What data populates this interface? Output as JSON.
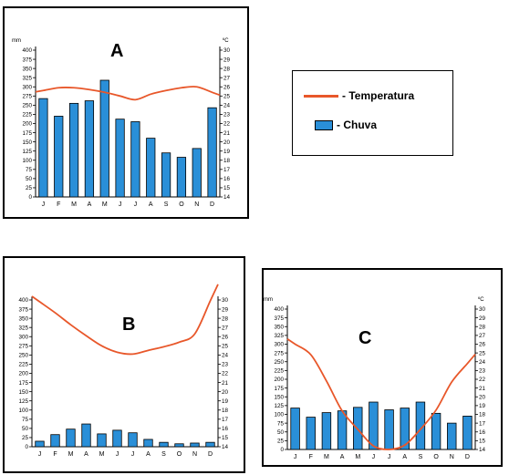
{
  "legend": {
    "temperature_label": "- Temperatura",
    "rain_label": "- Chuva",
    "temperature_color": "#e8572a",
    "rain_color": "#2a8fd8"
  },
  "chart_data": [
    {
      "type": "bar",
      "id": "A",
      "title": "A",
      "left_unit": "mm",
      "right_unit": "ºC",
      "categories": [
        "J",
        "F",
        "M",
        "A",
        "M",
        "J",
        "J",
        "A",
        "S",
        "O",
        "N",
        "D"
      ],
      "rain_ylim": [
        0,
        400
      ],
      "temp_ylim": [
        14,
        30
      ],
      "rain_ticks": [
        0,
        25,
        50,
        75,
        100,
        125,
        150,
        175,
        200,
        225,
        250,
        275,
        300,
        325,
        350,
        375,
        400
      ],
      "temp_ticks": [
        14,
        15,
        16,
        17,
        18,
        19,
        20,
        21,
        22,
        23,
        24,
        25,
        26,
        27,
        28,
        29,
        30
      ],
      "series": [
        {
          "name": "Chuva",
          "kind": "bar",
          "values": [
            268,
            220,
            255,
            262,
            318,
            212,
            205,
            160,
            120,
            108,
            132,
            243
          ]
        },
        {
          "name": "Temperatura",
          "kind": "line",
          "values": [
            25.6,
            25.9,
            25.9,
            25.7,
            25.4,
            25.0,
            24.6,
            25.2,
            25.6,
            25.9,
            26.0,
            25.4
          ]
        }
      ],
      "grid": false
    },
    {
      "type": "bar",
      "id": "B",
      "title": "B",
      "left_unit": "",
      "right_unit": "",
      "categories": [
        "J",
        "F",
        "M",
        "A",
        "M",
        "J",
        "J",
        "A",
        "S",
        "O",
        "N",
        "D"
      ],
      "rain_ylim": [
        0,
        400
      ],
      "temp_ylim": [
        14,
        30
      ],
      "rain_ticks": [
        0,
        25,
        50,
        75,
        100,
        125,
        150,
        175,
        200,
        225,
        250,
        275,
        300,
        325,
        350,
        375,
        400
      ],
      "temp_ticks": [
        14,
        15,
        16,
        17,
        18,
        19,
        20,
        21,
        22,
        23,
        24,
        25,
        26,
        27,
        28,
        29,
        30
      ],
      "series": [
        {
          "name": "Chuva",
          "kind": "bar",
          "values": [
            15,
            33,
            48,
            62,
            35,
            45,
            38,
            20,
            12,
            8,
            10,
            12
          ]
        },
        {
          "name": "Temperatura",
          "kind": "line",
          "values": [
            29.8,
            28.6,
            27.3,
            26.1,
            25.0,
            24.3,
            24.1,
            24.5,
            24.9,
            25.4,
            26.3,
            29.9
          ]
        }
      ],
      "grid": false
    },
    {
      "type": "bar",
      "id": "C",
      "title": "C",
      "left_unit": "mm",
      "right_unit": "ºC",
      "categories": [
        "J",
        "F",
        "M",
        "A",
        "M",
        "J",
        "J",
        "A",
        "S",
        "O",
        "N",
        "D"
      ],
      "rain_ylim": [
        0,
        400
      ],
      "temp_ylim": [
        14,
        30
      ],
      "rain_ticks": [
        0,
        25,
        50,
        75,
        100,
        125,
        150,
        175,
        200,
        225,
        250,
        275,
        300,
        325,
        350,
        375,
        400
      ],
      "temp_ticks": [
        14,
        15,
        16,
        17,
        18,
        19,
        20,
        21,
        22,
        23,
        24,
        25,
        26,
        27,
        28,
        29,
        30
      ],
      "series": [
        {
          "name": "Chuva",
          "kind": "bar",
          "values": [
            118,
            92,
            105,
            110,
            120,
            135,
            113,
            118,
            135,
            103,
            75,
            95
          ]
        },
        {
          "name": "Temperatura",
          "kind": "line",
          "values": [
            26.0,
            24.8,
            21.8,
            18.4,
            16.3,
            14.4,
            14.0,
            14.5,
            16.3,
            18.5,
            21.7,
            23.8
          ]
        }
      ],
      "grid": false
    }
  ]
}
